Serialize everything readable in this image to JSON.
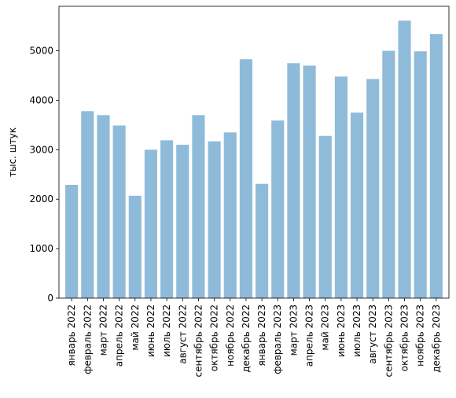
{
  "chart_data": {
    "type": "bar",
    "title": "",
    "xlabel": "",
    "ylabel": "тыс. штук",
    "ylim": [
      0,
      5900
    ],
    "yticks": [
      0,
      1000,
      2000,
      3000,
      4000,
      5000
    ],
    "grid": false,
    "bar_color": "#8fbbda",
    "categories": [
      "январь 2022",
      "февраль 2022",
      "март 2022",
      "апрель 2022",
      "май 2022",
      "июнь 2022",
      "июль 2022",
      "август 2022",
      "сентябрь 2022",
      "октябрь 2022",
      "ноябрь 2022",
      "декабрь 2022",
      "январь 2023",
      "февраль 2023",
      "март 2023",
      "апрель 2023",
      "май 2023",
      "июнь 2023",
      "июль 2023",
      "август 2023",
      "сентябрь 2023",
      "октябрь 2023",
      "ноябрь 2023",
      "декабрь 2023"
    ],
    "values": [
      2290,
      3780,
      3700,
      3490,
      2070,
      3000,
      3190,
      3100,
      3700,
      3170,
      3350,
      4830,
      2310,
      3590,
      4750,
      4700,
      3280,
      4480,
      3750,
      4430,
      5000,
      5610,
      4990,
      5340
    ]
  }
}
